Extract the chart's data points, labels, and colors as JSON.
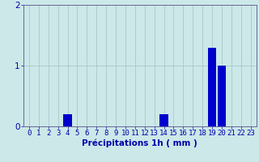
{
  "hours": [
    0,
    1,
    2,
    3,
    4,
    5,
    6,
    7,
    8,
    9,
    10,
    11,
    12,
    13,
    14,
    15,
    16,
    17,
    18,
    19,
    20,
    21,
    22,
    23
  ],
  "values": [
    0,
    0,
    0,
    0,
    0.2,
    0,
    0,
    0,
    0,
    0,
    0,
    0,
    0,
    0,
    0.2,
    0,
    0,
    0,
    0,
    1.3,
    1.0,
    0,
    0,
    0
  ],
  "bar_color": "#0000cc",
  "background_color": "#cce8e8",
  "grid_color": "#aac8c8",
  "axis_color": "#666699",
  "xlabel": "Précipitations 1h ( mm )",
  "ylim": [
    0,
    2
  ],
  "yticks": [
    0,
    1,
    2
  ],
  "tick_label_color": "#0000aa",
  "xlabel_color": "#0000aa",
  "xlabel_fontsize": 7.5,
  "tick_fontsize": 6.5
}
